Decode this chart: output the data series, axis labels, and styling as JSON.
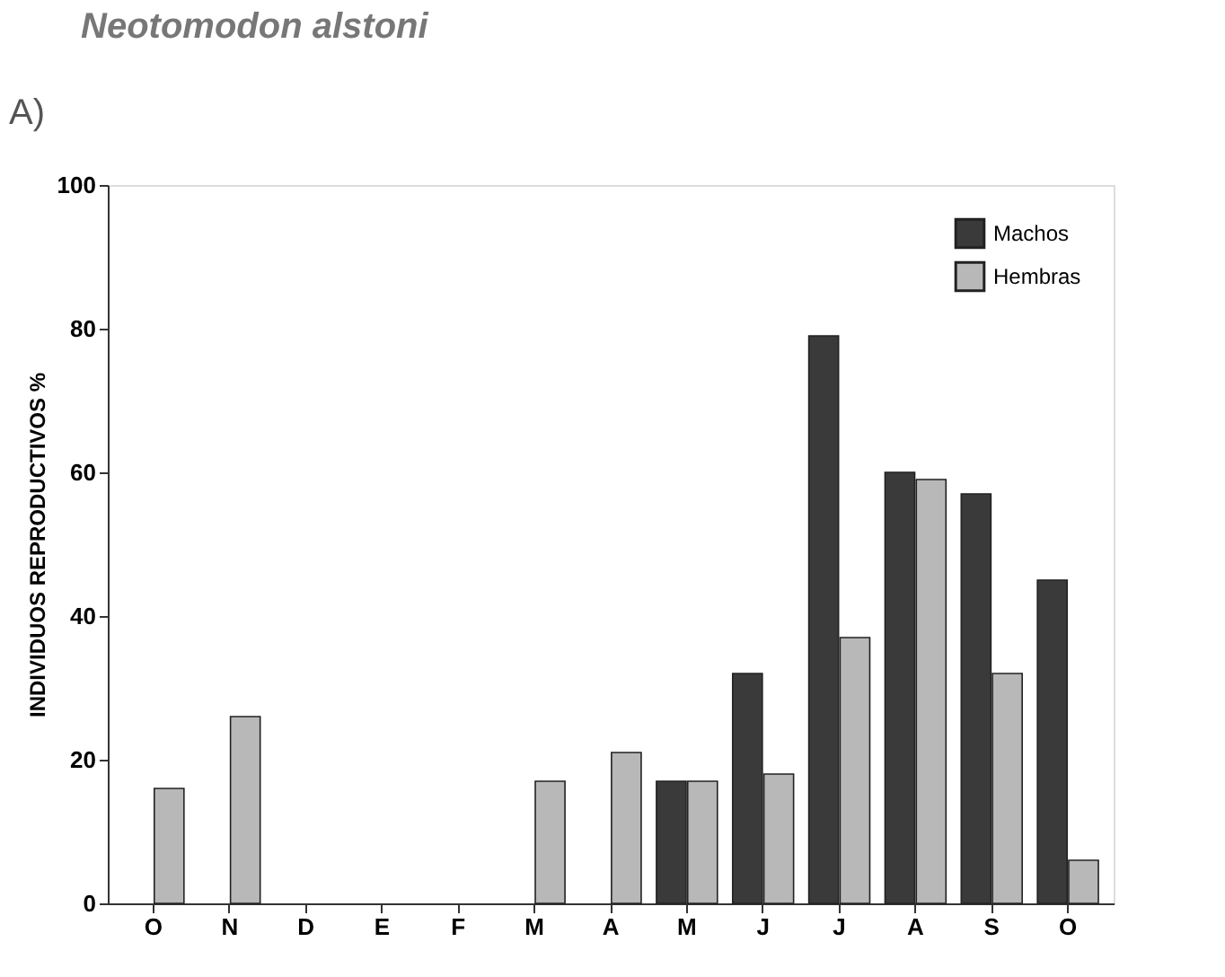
{
  "chart_data": {
    "type": "bar",
    "title": "Neotomodon alstoni",
    "annotations": [
      "A)"
    ],
    "ylabel": "INDIVIDUOS REPRODUCTIVOS %",
    "categories": [
      "O",
      "N",
      "D",
      "E",
      "F",
      "M",
      "A",
      "M",
      "J",
      "J",
      "A",
      "S",
      "O"
    ],
    "series": [
      {
        "name": "Machos",
        "color": "#3a3a3a",
        "values": [
          0,
          0,
          0,
          0,
          0,
          0,
          0,
          17,
          32,
          79,
          60,
          57,
          45
        ]
      },
      {
        "name": "Hembras",
        "color": "#b8b8b8",
        "values": [
          16,
          26,
          0,
          0,
          0,
          17,
          21,
          17,
          18,
          37,
          59,
          32,
          6
        ]
      }
    ],
    "ylim": [
      0,
      100
    ],
    "yticks": [
      0,
      20,
      40,
      60,
      80,
      100
    ],
    "grid": false,
    "legend": "top right"
  }
}
